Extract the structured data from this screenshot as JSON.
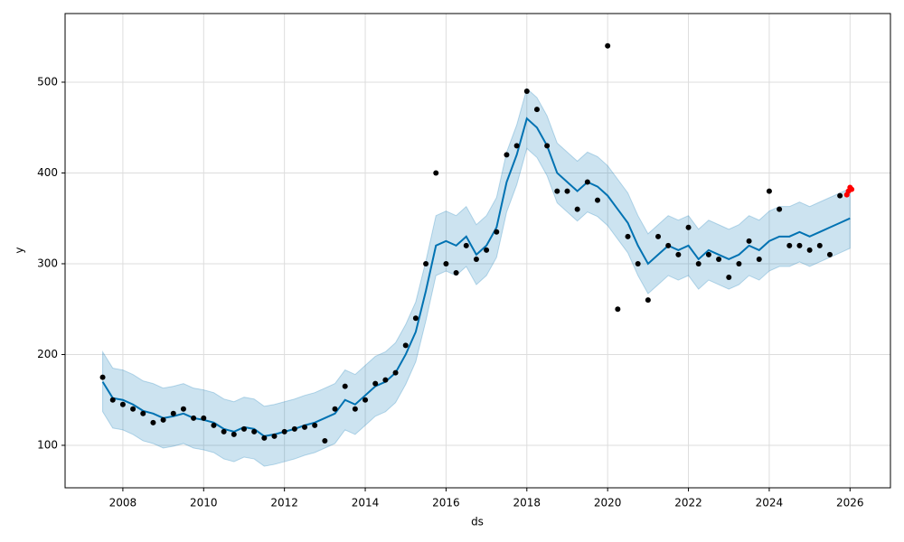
{
  "chart_data": {
    "type": "line",
    "x_label": "ds",
    "y_label": "y",
    "xlim": [
      2006.57,
      2027.0
    ],
    "ylim": [
      53.2,
      575.6
    ],
    "xticks": [
      2008,
      2010,
      2012,
      2014,
      2016,
      2018,
      2020,
      2022,
      2024,
      2026
    ],
    "yticks": [
      100,
      200,
      300,
      400,
      500
    ],
    "grid": true,
    "x": [
      2007.5,
      2007.75,
      2008,
      2008.25,
      2008.5,
      2008.75,
      2009,
      2009.25,
      2009.5,
      2009.75,
      2010,
      2010.25,
      2010.5,
      2010.75,
      2011,
      2011.25,
      2011.5,
      2011.75,
      2012,
      2012.25,
      2012.5,
      2012.75,
      2013,
      2013.25,
      2013.5,
      2013.75,
      2014,
      2014.25,
      2014.5,
      2014.75,
      2015,
      2015.25,
      2015.5,
      2015.75,
      2016,
      2016.25,
      2016.5,
      2016.75,
      2017,
      2017.25,
      2017.5,
      2017.75,
      2018,
      2018.25,
      2018.5,
      2018.75,
      2019,
      2019.25,
      2019.5,
      2019.75,
      2020,
      2020.25,
      2020.5,
      2020.75,
      2021,
      2021.25,
      2021.5,
      2021.75,
      2022,
      2022.25,
      2022.5,
      2022.75,
      2023,
      2023.25,
      2023.5,
      2023.75,
      2024,
      2024.25,
      2024.5,
      2024.75,
      2025,
      2025.25,
      2025.5,
      2025.75,
      2026
    ],
    "series": [
      {
        "style": "band",
        "color": "#0072b2",
        "values": [
          203,
          185,
          183,
          178,
          171,
          168,
          163,
          165,
          168,
          163,
          161,
          158,
          151,
          148,
          153,
          151,
          143,
          145,
          148,
          151,
          155,
          158,
          163,
          168,
          183,
          178,
          188,
          198,
          203,
          213,
          233,
          258,
          303,
          353,
          358,
          353,
          363,
          343,
          353,
          373,
          423,
          453,
          493,
          483,
          463,
          433,
          423,
          413,
          423,
          418,
          408,
          393,
          378,
          353,
          333,
          343,
          353,
          348,
          353,
          338,
          348,
          343,
          338,
          343,
          353,
          348,
          358,
          363,
          363,
          368,
          363,
          368,
          373,
          378,
          383
        ],
        "lower": [
          137,
          119,
          117,
          112,
          105,
          102,
          97,
          99,
          102,
          97,
          95,
          92,
          85,
          82,
          87,
          85,
          77,
          79,
          82,
          85,
          89,
          92,
          97,
          102,
          117,
          112,
          122,
          132,
          137,
          147,
          167,
          192,
          237,
          287,
          292,
          287,
          297,
          277,
          287,
          307,
          357,
          387,
          427,
          417,
          397,
          367,
          357,
          347,
          357,
          352,
          342,
          327,
          312,
          287,
          267,
          277,
          287,
          282,
          287,
          272,
          282,
          277,
          272,
          277,
          287,
          282,
          292,
          297,
          297,
          302,
          297,
          302,
          307,
          312,
          317
        ]
      },
      {
        "style": "line",
        "color": "#0072b2",
        "values": [
          170,
          152,
          150,
          145,
          138,
          135,
          130,
          132,
          135,
          130,
          128,
          125,
          118,
          115,
          120,
          118,
          110,
          112,
          115,
          118,
          122,
          125,
          130,
          135,
          150,
          145,
          155,
          165,
          170,
          180,
          200,
          225,
          270,
          320,
          325,
          320,
          330,
          310,
          320,
          340,
          390,
          420,
          460,
          450,
          430,
          400,
          390,
          380,
          390,
          385,
          375,
          360,
          345,
          320,
          300,
          310,
          320,
          315,
          320,
          305,
          315,
          310,
          305,
          310,
          320,
          315,
          325,
          330,
          330,
          335,
          330,
          335,
          340,
          345,
          350
        ]
      },
      {
        "style": "points",
        "color": "#000000",
        "values": [
          175,
          150,
          145,
          140,
          135,
          125,
          128,
          135,
          140,
          130,
          130,
          122,
          115,
          112,
          118,
          115,
          108,
          110,
          115,
          118,
          120,
          122,
          105,
          140,
          165,
          140,
          150,
          168,
          172,
          180,
          210,
          240,
          300,
          400,
          300,
          290,
          320,
          305,
          315,
          335,
          420,
          430,
          490,
          470,
          430,
          380,
          380,
          360,
          390,
          370,
          540,
          250,
          330,
          300,
          260,
          330,
          320,
          310,
          340,
          300,
          310,
          305,
          285,
          300,
          325,
          305,
          380,
          360,
          320,
          320,
          315,
          320,
          310,
          375,
          null
        ]
      },
      {
        "style": "points",
        "color": "#ff0000",
        "x": [
          2025.92,
          2025.96,
          2026.0,
          2026.04
        ],
        "values": [
          376,
          380,
          384,
          382
        ]
      }
    ]
  }
}
